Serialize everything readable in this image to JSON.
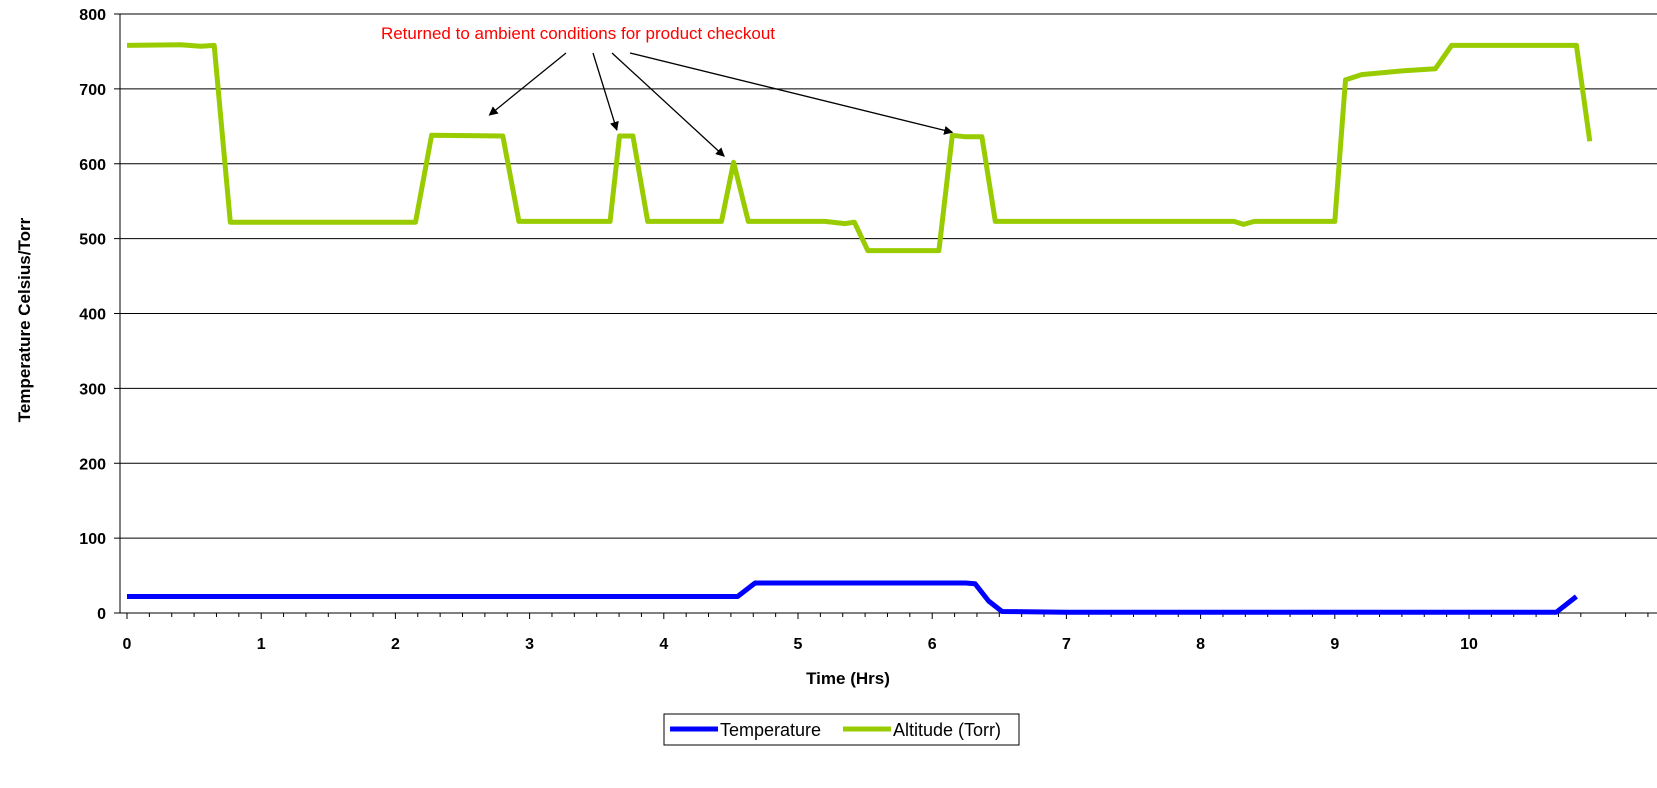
{
  "chart_data": {
    "type": "line",
    "title": "",
    "xlabel": "Time (Hrs)",
    "ylabel": "Temperature Celsius/Torr",
    "xlim": [
      0,
      11
    ],
    "ylim": [
      0,
      800
    ],
    "xticks": [
      "0",
      "1",
      "2",
      "3",
      "4",
      "5",
      "6",
      "7",
      "8",
      "9",
      "10"
    ],
    "yticks": [
      "0",
      "100",
      "200",
      "300",
      "400",
      "500",
      "600",
      "700",
      "800"
    ],
    "grid": "horizontal",
    "legend": {
      "position": "bottom-center"
    },
    "colors": {
      "temperature": "#0000ff",
      "altitude": "#99cc00",
      "annotation": "#ff0000"
    },
    "annotation": {
      "text": "Returned to ambient conditions for product checkout",
      "arrow_targets": [
        [
          2.7,
          665
        ],
        [
          3.65,
          645
        ],
        [
          4.45,
          610
        ],
        [
          6.15,
          642
        ]
      ]
    },
    "series": [
      {
        "name": "Temperature",
        "color": "#0000ff",
        "points": [
          [
            0,
            22
          ],
          [
            1,
            22
          ],
          [
            2,
            22
          ],
          [
            3,
            22
          ],
          [
            4,
            22
          ],
          [
            4.55,
            22
          ],
          [
            4.68,
            40
          ],
          [
            5,
            40
          ],
          [
            5.5,
            40
          ],
          [
            6,
            40
          ],
          [
            6.25,
            40
          ],
          [
            6.32,
            39
          ],
          [
            6.42,
            16
          ],
          [
            6.52,
            2
          ],
          [
            7,
            1
          ],
          [
            8,
            1
          ],
          [
            9,
            1
          ],
          [
            10,
            1
          ],
          [
            10.65,
            1
          ],
          [
            10.8,
            22
          ]
        ]
      },
      {
        "name": "Altitude (Torr)",
        "color": "#99cc00",
        "points": [
          [
            0,
            758
          ],
          [
            0.4,
            759
          ],
          [
            0.55,
            757
          ],
          [
            0.65,
            758
          ],
          [
            0.77,
            522
          ],
          [
            1,
            522
          ],
          [
            1.5,
            522
          ],
          [
            2,
            522
          ],
          [
            2.15,
            522
          ],
          [
            2.27,
            638
          ],
          [
            2.8,
            637
          ],
          [
            2.92,
            523
          ],
          [
            3.5,
            523
          ],
          [
            3.6,
            523
          ],
          [
            3.67,
            637
          ],
          [
            3.77,
            637
          ],
          [
            3.88,
            523
          ],
          [
            4.3,
            523
          ],
          [
            4.43,
            523
          ],
          [
            4.52,
            602
          ],
          [
            4.63,
            523
          ],
          [
            5.2,
            523
          ],
          [
            5.35,
            520
          ],
          [
            5.42,
            522
          ],
          [
            5.52,
            484
          ],
          [
            5.8,
            484
          ],
          [
            6.05,
            484
          ],
          [
            6.15,
            638
          ],
          [
            6.25,
            636
          ],
          [
            6.37,
            636
          ],
          [
            6.47,
            523
          ],
          [
            7,
            523
          ],
          [
            7.5,
            523
          ],
          [
            8,
            523
          ],
          [
            8.25,
            523
          ],
          [
            8.32,
            519
          ],
          [
            8.4,
            523
          ],
          [
            8.8,
            523
          ],
          [
            9,
            523
          ],
          [
            9.08,
            712
          ],
          [
            9.2,
            719
          ],
          [
            9.5,
            724
          ],
          [
            9.75,
            727
          ],
          [
            9.87,
            758
          ],
          [
            10.5,
            758
          ],
          [
            10.8,
            758
          ],
          [
            10.9,
            630
          ]
        ]
      }
    ]
  }
}
